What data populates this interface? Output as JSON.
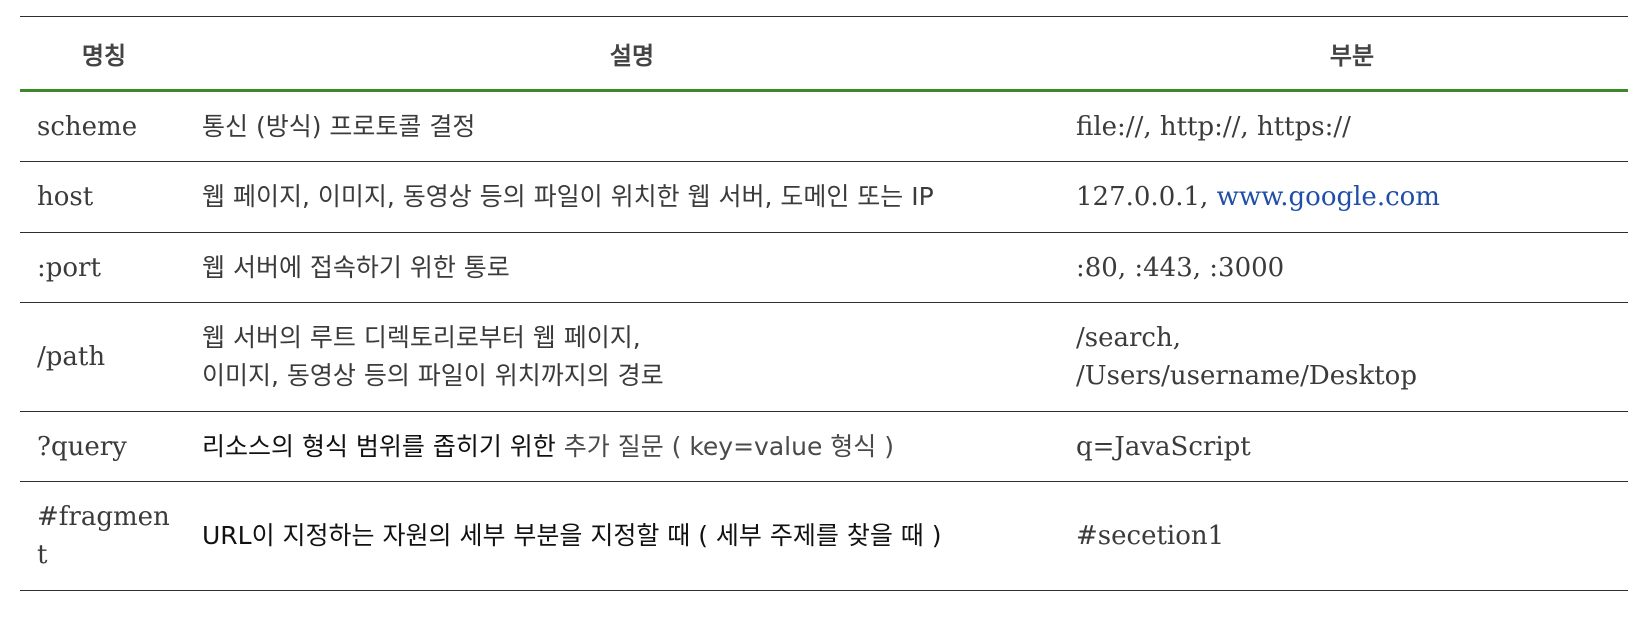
{
  "headers": {
    "name": "명칭",
    "description": "설명",
    "part": "부분"
  },
  "rows": [
    {
      "name": "scheme",
      "description": "통신 (방식) 프로토콜 결정",
      "part": "file://, http://, https://"
    },
    {
      "name": "host",
      "description": "웹 페이지, 이미지, 동영상 등의 파일이 위치한 웹 서버, 도메인 또는 IP",
      "part_prefix": "127.0.0.1, ",
      "part_link": "www.google.com"
    },
    {
      "name": ":port",
      "description": "웹 서버에 접속하기 위한 통로",
      "part": ":80, :443, :3000"
    },
    {
      "name": "/path",
      "description_lines": [
        "웹 서버의 루트 디렉토리로부터 웹 페이지,",
        "이미지, 동영상 등의 파일이 위치까지의 경로"
      ],
      "part_lines": [
        "/search,",
        "/Users/username/Desktop"
      ]
    },
    {
      "name": "?query",
      "description_main": "리소스의 형식 범위를 좁히기 위한 ",
      "description_tail": "추가 질문 ( key=value 형식 )",
      "part": "q=JavaScript"
    },
    {
      "name": "#fragment",
      "description": "URL이 지정하는 자원의 세부 부분을 지정할 때 ( 세부 주제를 찾을 때 )",
      "part": "#secetion1"
    }
  ],
  "colors": {
    "header_rule": "#3a8a2a",
    "link": "#1f4fa8",
    "border": "#2e2e2e"
  }
}
